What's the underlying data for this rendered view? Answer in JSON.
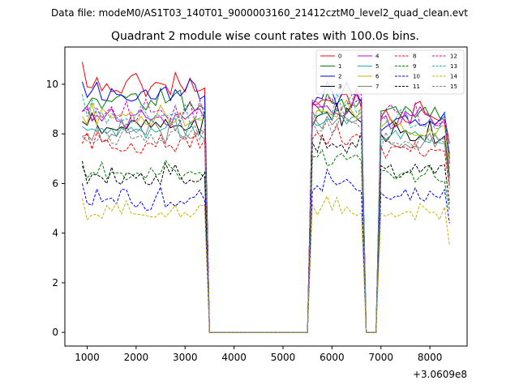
{
  "figure": {
    "suptitle": "Data file: modeM0/AS1T03_140T01_9000003160_21412cztM0_level2_quad_clean.evt"
  },
  "chart_data": {
    "type": "line",
    "title": "Quadrant 2 module wise count rates with 100.0s bins.",
    "xlabel": "",
    "ylabel": "",
    "x_offset_label": "+3.0609e8",
    "xlim": [
      545,
      8760
    ],
    "ylim": [
      -0.55,
      11.5
    ],
    "x_ticks": [
      1000,
      2000,
      3000,
      4000,
      5000,
      6000,
      7000,
      8000
    ],
    "y_ticks": [
      0,
      2,
      4,
      6,
      8,
      10
    ],
    "grid": false,
    "legend_position": "top-right",
    "segments": [
      {
        "x_start": 900,
        "x_end": 3400,
        "step": 100
      },
      {
        "x_start": 5600,
        "x_end": 6600,
        "step": 100
      },
      {
        "x_start": 7000,
        "x_end": 8400,
        "step": 100
      }
    ],
    "gaps": [
      {
        "after": 3400,
        "zero_start": 3500,
        "zero_end": 5500
      },
      {
        "after": 6600,
        "zero_start": 6700,
        "zero_end": 6900
      }
    ],
    "series": [
      {
        "name": "0",
        "color": "#ff0000",
        "dash": false,
        "seg_means": [
          9.8,
          9.3,
          8.6
        ],
        "start_point": 10.9,
        "end_point": 7.6,
        "noise": 0.32
      },
      {
        "name": "1",
        "color": "#008000",
        "dash": false,
        "seg_means": [
          9.2,
          9.0,
          8.85
        ],
        "start_point": 8.9,
        "end_point": 7.2,
        "noise": 0.3
      },
      {
        "name": "2",
        "color": "#0000ff",
        "dash": false,
        "seg_means": [
          9.6,
          9.4,
          8.4
        ],
        "start_point": 10.1,
        "end_point": 7.0,
        "noise": 0.3
      },
      {
        "name": "3",
        "color": "#000000",
        "dash": false,
        "seg_means": [
          8.3,
          8.6,
          7.9
        ],
        "start_point": 8.5,
        "end_point": 6.3,
        "noise": 0.3
      },
      {
        "name": "4",
        "color": "#cc00cc",
        "dash": false,
        "seg_means": [
          8.5,
          9.0,
          8.5
        ],
        "start_point": 8.9,
        "end_point": 6.8,
        "noise": 0.3
      },
      {
        "name": "5",
        "color": "#20b2aa",
        "dash": false,
        "seg_means": [
          8.0,
          8.5,
          7.9
        ],
        "start_point": 8.3,
        "end_point": 6.2,
        "noise": 0.3
      },
      {
        "name": "6",
        "color": "#c8b400",
        "dash": false,
        "seg_means": [
          8.6,
          8.8,
          8.2
        ],
        "start_point": 8.7,
        "end_point": 6.6,
        "noise": 0.3
      },
      {
        "name": "7",
        "color": "#808080",
        "dash": false,
        "seg_means": [
          7.9,
          8.5,
          7.7
        ],
        "start_point": 7.9,
        "end_point": 6.0,
        "noise": 0.3
      },
      {
        "name": "8",
        "color": "#ff0000",
        "dash": true,
        "seg_means": [
          7.5,
          7.8,
          7.3
        ],
        "start_point": 7.6,
        "end_point": 5.8,
        "noise": 0.28
      },
      {
        "name": "9",
        "color": "#008000",
        "dash": true,
        "seg_means": [
          6.3,
          6.9,
          6.3
        ],
        "start_point": 6.7,
        "end_point": 4.9,
        "noise": 0.25
      },
      {
        "name": "10",
        "color": "#0000ff",
        "dash": true,
        "seg_means": [
          5.2,
          5.9,
          5.5
        ],
        "start_point": 6.0,
        "end_point": 4.4,
        "noise": 0.28
      },
      {
        "name": "11",
        "color": "#000000",
        "dash": true,
        "seg_means": [
          6.2,
          7.4,
          6.5
        ],
        "start_point": 6.9,
        "end_point": 5.2,
        "noise": 0.28
      },
      {
        "name": "12",
        "color": "#cc00cc",
        "dash": true,
        "seg_means": [
          8.8,
          9.1,
          8.6
        ],
        "start_point": 8.9,
        "end_point": 7.0,
        "noise": 0.3
      },
      {
        "name": "13",
        "color": "#20b2aa",
        "dash": true,
        "seg_means": [
          8.7,
          9.0,
          8.4
        ],
        "start_point": 9.6,
        "end_point": 6.9,
        "noise": 0.3
      },
      {
        "name": "14",
        "color": "#c8b400",
        "dash": true,
        "seg_means": [
          4.7,
          4.9,
          4.7
        ],
        "start_point": 5.4,
        "end_point": 3.5,
        "noise": 0.22
      },
      {
        "name": "15",
        "color": "#808080",
        "dash": true,
        "seg_means": [
          7.8,
          8.3,
          7.5
        ],
        "start_point": 7.9,
        "end_point": 5.9,
        "noise": 0.3
      }
    ]
  }
}
